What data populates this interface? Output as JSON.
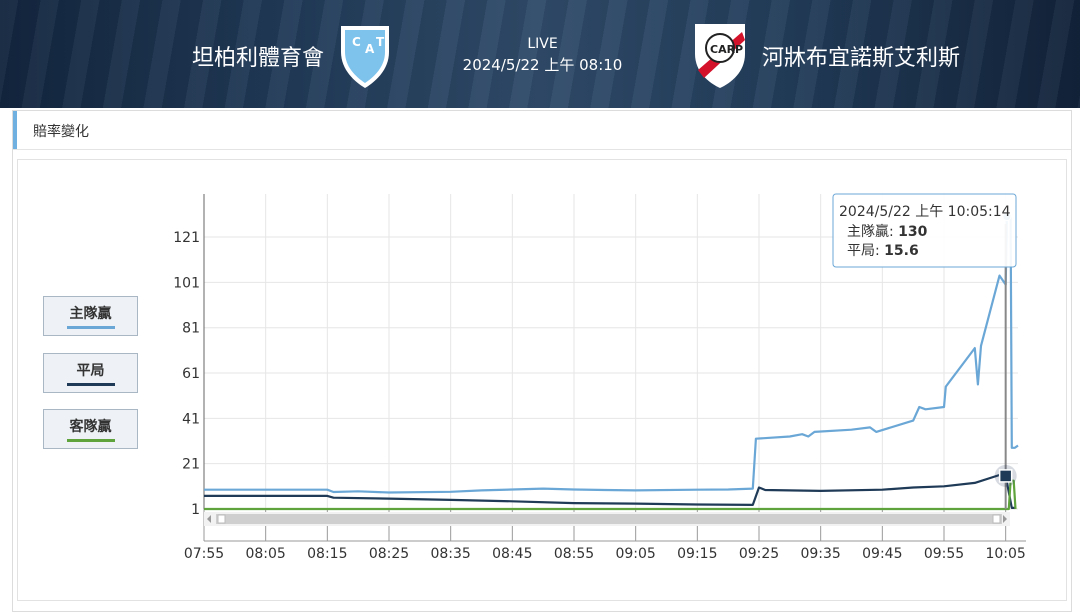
{
  "header": {
    "home_team": "坦柏利體育會",
    "away_team": "河牀布宜諾斯艾利斯",
    "status": "LIVE",
    "datetime": "2024/5/22 上午 08:10"
  },
  "panel": {
    "title": "賠率變化"
  },
  "legend": [
    {
      "label": "主隊贏",
      "color": "#6ba7d6"
    },
    {
      "label": "平局",
      "color": "#1f3a57"
    },
    {
      "label": "客隊贏",
      "color": "#5ea33c"
    }
  ],
  "tooltip": {
    "time": "2024/5/22 上午 10:05:14",
    "rows": [
      {
        "label": "主隊贏: ",
        "value": "130"
      },
      {
        "label": "平局: ",
        "value": "15.6"
      }
    ]
  },
  "chart_data": {
    "type": "line",
    "x_tick_labels": [
      "07:55",
      "08:05",
      "08:15",
      "08:25",
      "08:35",
      "08:45",
      "08:55",
      "09:05",
      "09:15",
      "09:25",
      "09:35",
      "09:45",
      "09:55",
      "10:05"
    ],
    "y_tick_labels": [
      "1",
      "21",
      "41",
      "61",
      "81",
      "101",
      "121"
    ],
    "xlim": [
      "07:55",
      "10:07"
    ],
    "ylim": [
      1,
      140
    ],
    "series": [
      {
        "name": "主隊贏",
        "color": "#6ba7d6",
        "points": [
          [
            "07:55",
            9.5
          ],
          [
            "08:15",
            9.5
          ],
          [
            "08:16",
            8.5
          ],
          [
            "08:20",
            8.8
          ],
          [
            "08:25",
            8.3
          ],
          [
            "08:35",
            8.6
          ],
          [
            "08:40",
            9.2
          ],
          [
            "08:45",
            9.6
          ],
          [
            "08:50",
            10.0
          ],
          [
            "08:55",
            9.6
          ],
          [
            "09:00",
            9.4
          ],
          [
            "09:05",
            9.2
          ],
          [
            "09:15",
            9.5
          ],
          [
            "09:20",
            9.6
          ],
          [
            "09:24",
            10.0
          ],
          [
            "09:24.5",
            32
          ],
          [
            "09:30",
            33
          ],
          [
            "09:32",
            34
          ],
          [
            "09:33",
            33
          ],
          [
            "09:34",
            35
          ],
          [
            "09:40",
            36
          ],
          [
            "09:43",
            37
          ],
          [
            "09:44",
            35
          ],
          [
            "09:50",
            40
          ],
          [
            "09:51",
            46
          ],
          [
            "09:52",
            45
          ],
          [
            "09:55",
            46
          ],
          [
            "09:55.3",
            55
          ],
          [
            "10:00",
            72
          ],
          [
            "10:00.5",
            56
          ],
          [
            "10:01",
            73
          ],
          [
            "10:04",
            104
          ],
          [
            "10:05",
            100
          ],
          [
            "10:05.2",
            130
          ],
          [
            "10:05.8",
            130
          ],
          [
            "10:06",
            28
          ],
          [
            "10:06.5",
            28
          ],
          [
            "10:07",
            29
          ]
        ]
      },
      {
        "name": "平局",
        "color": "#1f3a57",
        "points": [
          [
            "07:55",
            6.8
          ],
          [
            "08:15",
            6.8
          ],
          [
            "08:16",
            6.0
          ],
          [
            "08:25",
            5.6
          ],
          [
            "08:35",
            5.0
          ],
          [
            "08:45",
            4.4
          ],
          [
            "08:55",
            3.6
          ],
          [
            "09:05",
            3.4
          ],
          [
            "09:15",
            3.0
          ],
          [
            "09:24",
            2.8
          ],
          [
            "09:25",
            10.5
          ],
          [
            "09:26",
            9.4
          ],
          [
            "09:35",
            9.0
          ],
          [
            "09:45",
            9.5
          ],
          [
            "09:50",
            10.5
          ],
          [
            "09:55",
            11.0
          ],
          [
            "10:00",
            12.5
          ],
          [
            "10:04",
            16.0
          ],
          [
            "10:05",
            15.6
          ],
          [
            "10:06",
            1.5
          ],
          [
            "10:06.5",
            1.5
          ]
        ]
      },
      {
        "name": "客隊贏",
        "color": "#5ea33c",
        "points": [
          [
            "07:55",
            1.02
          ],
          [
            "10:05.5",
            1.02
          ],
          [
            "10:05.8",
            13.5
          ],
          [
            "10:06.3",
            13.5
          ],
          [
            "10:06.6",
            1.02
          ]
        ]
      }
    ],
    "grid": true,
    "legend_position": "left",
    "crosshair_x": "10:05"
  }
}
